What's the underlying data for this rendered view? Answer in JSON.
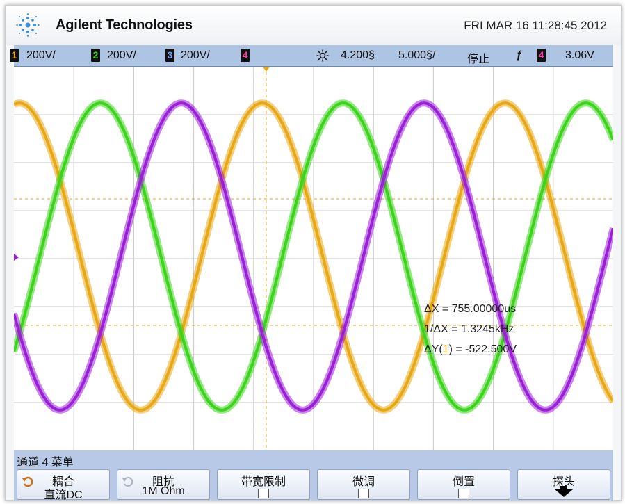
{
  "header": {
    "brand": "Agilent Technologies",
    "datetime": "FRI MAR 16 11:28:45 2012"
  },
  "status": {
    "ch1_num": "1",
    "ch1_scale": "200V/",
    "ch2_num": "2",
    "ch2_scale": "200V/",
    "ch3_num": "3",
    "ch3_scale": "200V/",
    "ch4_num": "4",
    "time_delay": "4.200§",
    "time_scale": "5.000§/",
    "run_state": "停止",
    "trigger_ch": "4",
    "trigger_level": "3.06V"
  },
  "measurements": {
    "dx": "ΔX = 755.00000us",
    "inv_dx": "1/ΔX = 1.3245kHz",
    "dy_prefix": "ΔY(",
    "dy_ch": "1",
    "dy_suffix": ") = -522.500V"
  },
  "menu": {
    "title": "通道 4 菜单",
    "keys": [
      {
        "line1": "耦合",
        "line2": "直流DC"
      },
      {
        "line1": "阻抗",
        "line2": "1M Ohm"
      },
      {
        "line1": "带宽限制",
        "line2": ""
      },
      {
        "line1": "微调",
        "line2": ""
      },
      {
        "line1": "倒置",
        "line2": ""
      },
      {
        "line1": "探头",
        "line2": ""
      }
    ]
  },
  "colors": {
    "yellow": "#e8a814",
    "green": "#3bd41a",
    "purple": "#9a1fd6",
    "blue_bar": "#aec4e3"
  },
  "waveforms": {
    "period_divisions": 4.05,
    "yellow_phase_div": 0.0,
    "green_phase_div": 1.35,
    "purple_phase_div": 2.7
  }
}
